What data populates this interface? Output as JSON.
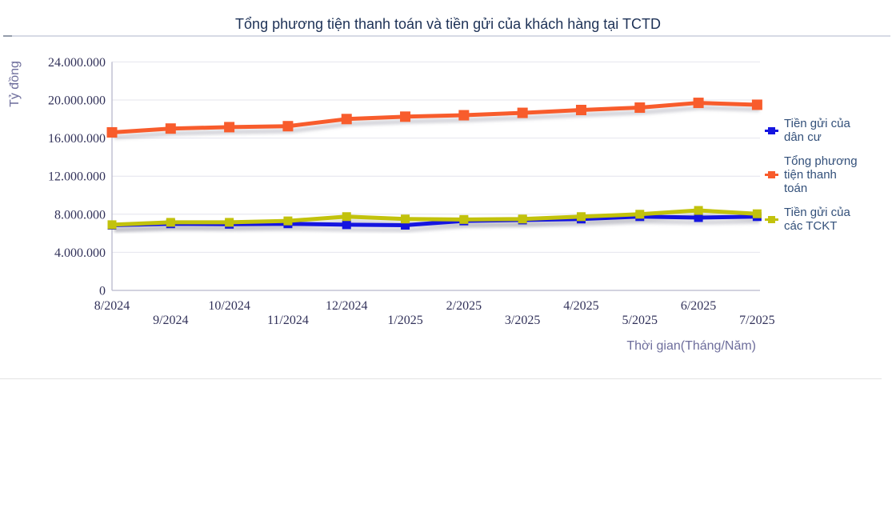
{
  "page": {
    "title": "Tổng phương tiện thanh toán và tiền gửi của khách hàng tại TCTD"
  },
  "chart_data": {
    "type": "line",
    "title": "Tổng phương tiện thanh toán và tiền gửi của khách hàng tại TCTD",
    "xlabel": "Thời gian(Tháng/Năm)",
    "ylabel": "Tỷ đồng",
    "unit": "Tỷ đồng",
    "ylim": [
      0,
      24000000
    ],
    "y_ticks": [
      0,
      4000000,
      8000000,
      12000000,
      16000000,
      20000000,
      24000000
    ],
    "y_tick_labels": [
      "0",
      "4.000.000",
      "8.000.000",
      "12.000.000",
      "16.000.000",
      "20.000.000",
      "24.000.000"
    ],
    "categories": [
      "8/2024",
      "9/2024",
      "10/2024",
      "11/2024",
      "12/2024",
      "1/2025",
      "2/2025",
      "3/2025",
      "4/2025",
      "5/2025",
      "6/2025",
      "7/2025"
    ],
    "grid": "horizontal",
    "legend_position": "right",
    "series": [
      {
        "name": "Tiền gửi của dân cư",
        "color": "#1515e0",
        "marker": "square",
        "values": [
          6850000,
          7000000,
          6950000,
          7000000,
          6900000,
          6850000,
          7300000,
          7400000,
          7500000,
          7750000,
          7650000,
          7750000
        ]
      },
      {
        "name": "Tổng phương tiện thanh toán",
        "color": "#f85c2c",
        "marker": "square",
        "values": [
          16600000,
          17000000,
          17150000,
          17250000,
          18000000,
          18250000,
          18400000,
          18650000,
          18950000,
          19200000,
          19700000,
          19500000
        ]
      },
      {
        "name": "Tiền gửi của các TCKT",
        "color": "#c2c20c",
        "marker": "square",
        "values": [
          6900000,
          7150000,
          7150000,
          7300000,
          7750000,
          7500000,
          7450000,
          7500000,
          7750000,
          8000000,
          8400000,
          8050000
        ]
      }
    ]
  }
}
